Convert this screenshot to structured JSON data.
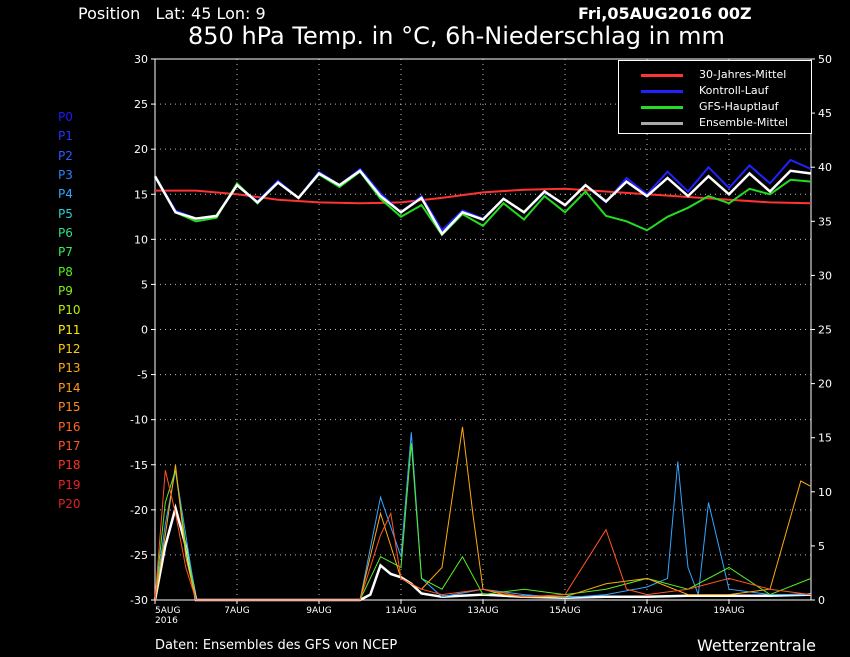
{
  "header": {
    "position": "Position   Lat: 45 Lon: 9",
    "run": "Fri,05AUG2016 00Z",
    "title": "850 hPa Temp. in °C, 6h-Niederschlag in mm"
  },
  "footer": {
    "source": "Daten: Ensembles des GFS von NCEP",
    "brand": "Wetterzentrale"
  },
  "members": [
    {
      "label": "P0",
      "color": "#1a1aff"
    },
    {
      "label": "P1",
      "color": "#2233ff"
    },
    {
      "label": "P2",
      "color": "#2a5cff"
    },
    {
      "label": "P3",
      "color": "#2f80ff"
    },
    {
      "label": "P4",
      "color": "#33a6ff"
    },
    {
      "label": "P5",
      "color": "#33cccc"
    },
    {
      "label": "P6",
      "color": "#33dd88"
    },
    {
      "label": "P7",
      "color": "#33ee55"
    },
    {
      "label": "P8",
      "color": "#55ee22"
    },
    {
      "label": "P9",
      "color": "#88ee11"
    },
    {
      "label": "P10",
      "color": "#bbee00"
    },
    {
      "label": "P11",
      "color": "#ffee00"
    },
    {
      "label": "P12",
      "color": "#ffcc00"
    },
    {
      "label": "P13",
      "color": "#ffaa11"
    },
    {
      "label": "P14",
      "color": "#ff9922"
    },
    {
      "label": "P15",
      "color": "#ff8822"
    },
    {
      "label": "P16",
      "color": "#ff6622"
    },
    {
      "label": "P17",
      "color": "#ff5522"
    },
    {
      "label": "P18",
      "color": "#ff3322"
    },
    {
      "label": "P19",
      "color": "#ee2222"
    },
    {
      "label": "P20",
      "color": "#dd2222"
    }
  ],
  "chart_data": {
    "type": "line",
    "title": "850 hPa Temp. in °C, 6h-Niederschlag in mm",
    "x_ticks": [
      {
        "day": 0,
        "label": "5AUG",
        "sub": "2016"
      },
      {
        "day": 2,
        "label": "7AUG"
      },
      {
        "day": 4,
        "label": "9AUG"
      },
      {
        "day": 6,
        "label": "11AUG"
      },
      {
        "day": 8,
        "label": "13AUG"
      },
      {
        "day": 10,
        "label": "15AUG"
      },
      {
        "day": 12,
        "label": "17AUG"
      },
      {
        "day": 14,
        "label": "19AUG"
      }
    ],
    "x_range_days": [
      0,
      16
    ],
    "y_left": {
      "range": [
        -30,
        30
      ],
      "ticks": [
        30,
        25,
        20,
        15,
        10,
        5,
        0,
        -5,
        -10,
        -15,
        -20,
        -25,
        -30
      ]
    },
    "y_right": {
      "range": [
        0,
        50
      ],
      "ticks": [
        50,
        45,
        40,
        35,
        30,
        25,
        20,
        15,
        10,
        5,
        0
      ]
    },
    "grid": true,
    "legend_position": "top-right",
    "legend": [
      {
        "name": "30-Jahres-Mittel",
        "color": "#ff3333"
      },
      {
        "name": "Kontroll-Lauf",
        "color": "#2222ff"
      },
      {
        "name": "GFS-Hauptlauf",
        "color": "#22dd22"
      },
      {
        "name": "Ensemble-Mittel",
        "color": "#aaaaaa"
      }
    ],
    "temperature_series": [
      {
        "name": "30-Jahres-Mittel",
        "color": "#ff3333",
        "x": [
          0,
          1,
          2,
          3,
          4,
          5,
          6,
          7,
          8,
          9,
          10,
          11,
          12,
          13,
          14,
          15,
          16
        ],
        "values": [
          15.4,
          15.4,
          15.0,
          14.4,
          14.1,
          14.0,
          14.1,
          14.6,
          15.2,
          15.5,
          15.6,
          15.3,
          15.0,
          14.7,
          14.4,
          14.1,
          14.0
        ]
      },
      {
        "name": "Kontroll-Lauf",
        "color": "#2222ff",
        "x": [
          0,
          0.5,
          1,
          1.5,
          2,
          2.5,
          3,
          3.5,
          4,
          4.5,
          5,
          5.5,
          6,
          6.5,
          7,
          7.5,
          8,
          8.5,
          9,
          9.5,
          10,
          10.5,
          11,
          11.5,
          12,
          12.5,
          13,
          13.5,
          14,
          14.5,
          15,
          15.5,
          16
        ],
        "values": [
          17,
          13.2,
          12.3,
          12.5,
          16.0,
          14.2,
          16.5,
          14.6,
          17.5,
          16.0,
          17.8,
          15.1,
          13.0,
          14.8,
          11.0,
          13.2,
          12.3,
          14.5,
          13.0,
          15.2,
          13.8,
          16.0,
          14.1,
          16.8,
          15.0,
          17.5,
          15.3,
          18.0,
          15.7,
          18.2,
          16.2,
          18.8,
          17.8
        ]
      },
      {
        "name": "GFS-Hauptlauf",
        "color": "#22dd22",
        "x": [
          0,
          0.5,
          1,
          1.5,
          2,
          2.5,
          3,
          3.5,
          4,
          4.5,
          5,
          5.5,
          6,
          6.5,
          7,
          7.5,
          8,
          8.5,
          9,
          9.5,
          10,
          10.5,
          11,
          11.5,
          12,
          12.5,
          13,
          13.5,
          14,
          14.5,
          15,
          15.5,
          16
        ],
        "values": [
          17,
          13.0,
          12.0,
          12.4,
          16.2,
          14.0,
          16.3,
          14.6,
          17.2,
          15.8,
          17.5,
          14.5,
          12.5,
          13.8,
          10.5,
          12.8,
          11.5,
          14.0,
          12.2,
          14.8,
          13.0,
          15.3,
          12.6,
          12.0,
          11.0,
          12.5,
          13.5,
          14.8,
          14.0,
          15.6,
          15.0,
          16.6,
          16.4
        ]
      },
      {
        "name": "Ensemble-Mittel",
        "color": "#ffffff",
        "x": [
          0,
          0.5,
          1,
          1.5,
          2,
          2.5,
          3,
          3.5,
          4,
          4.5,
          5,
          5.5,
          6,
          6.5,
          7,
          7.5,
          8,
          8.5,
          9,
          9.5,
          10,
          10.5,
          11,
          11.5,
          12,
          12.5,
          13,
          13.5,
          14,
          14.5,
          15,
          15.5,
          16
        ],
        "values": [
          17,
          13.0,
          12.3,
          12.6,
          16.0,
          14.1,
          16.3,
          14.6,
          17.3,
          16.0,
          17.6,
          14.8,
          13.0,
          14.6,
          10.6,
          13.0,
          12.2,
          14.5,
          13.0,
          15.3,
          13.8,
          16.0,
          14.2,
          16.4,
          14.8,
          16.8,
          14.8,
          17.0,
          15.0,
          17.3,
          15.3,
          17.6,
          17.3
        ]
      }
    ],
    "precipitation_series": [
      {
        "name": "Ensemble-Mittel",
        "color": "#ffffff",
        "x": [
          0,
          0.25,
          0.5,
          0.75,
          1,
          5,
          5.25,
          5.5,
          5.75,
          6,
          6.25,
          6.5,
          7,
          8,
          9,
          10,
          11,
          12,
          13,
          14,
          15,
          16
        ],
        "values": [
          0,
          5,
          8.5,
          5,
          0,
          0,
          0.5,
          3.2,
          2.4,
          2.1,
          1.5,
          0.6,
          0.3,
          0.5,
          0.3,
          0.2,
          0.3,
          0.3,
          0.4,
          0.4,
          0.4,
          0.5
        ]
      },
      {
        "name": "P4",
        "color": "#33a6ff",
        "x": [
          0,
          0.25,
          0.5,
          0.75,
          1,
          5,
          5.5,
          6,
          6.25,
          6.5,
          7,
          8,
          9,
          10,
          11,
          12,
          12.5,
          12.75,
          13,
          13.25,
          13.5,
          14,
          15,
          16
        ],
        "values": [
          0,
          7,
          12,
          6,
          0,
          0,
          9.5,
          4,
          15.5,
          2,
          0.3,
          1,
          0.5,
          0.2,
          0.5,
          1.2,
          2,
          12.8,
          3,
          0.5,
          9,
          1,
          0.5,
          0.5
        ]
      },
      {
        "name": "P8",
        "color": "#55ee22",
        "x": [
          0,
          0.25,
          0.5,
          0.75,
          1,
          5,
          5.5,
          6,
          6.25,
          6.5,
          7,
          7.5,
          8,
          9,
          10,
          11,
          12,
          13,
          14,
          15,
          16
        ],
        "values": [
          0,
          9,
          12,
          5,
          0,
          0,
          4,
          3,
          14.5,
          2,
          1,
          4,
          0.5,
          1,
          0.5,
          1,
          2,
          1,
          3,
          0.5,
          2
        ]
      },
      {
        "name": "P13",
        "color": "#ffaa11",
        "x": [
          0,
          0.25,
          0.5,
          0.75,
          1,
          5,
          5.5,
          6,
          6.5,
          7,
          7.5,
          7.75,
          8,
          8.5,
          9,
          10,
          11,
          12,
          13,
          14,
          15,
          15.75,
          16
        ],
        "values": [
          0,
          6,
          12.5,
          4,
          0,
          0,
          8,
          2,
          1,
          3,
          16,
          8,
          1,
          0.5,
          0.3,
          0.3,
          1.5,
          2,
          0.5,
          0.5,
          1,
          11,
          10.5
        ]
      },
      {
        "name": "P17",
        "color": "#ff5522",
        "x": [
          0,
          0.25,
          0.5,
          0.75,
          1,
          5,
          5.5,
          5.75,
          6,
          6.5,
          7,
          8,
          9,
          10,
          11,
          11.5,
          12,
          13,
          14,
          15,
          16
        ],
        "values": [
          0,
          12,
          8,
          3,
          0,
          0,
          6,
          8,
          2,
          1,
          0.5,
          1,
          0.3,
          0.5,
          6.5,
          1,
          0.5,
          1,
          2,
          1,
          0.5
        ]
      }
    ]
  }
}
